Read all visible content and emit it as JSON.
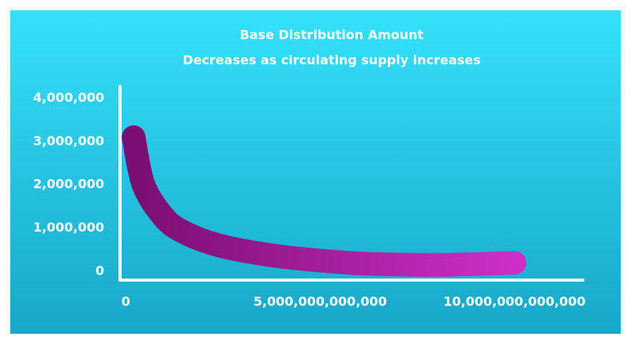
{
  "chart_data": {
    "type": "line",
    "title": "Base Distribution Amount",
    "subtitle": "Decreases as circulating supply increases",
    "x": [
      200000000000,
      350000000000,
      500000000000,
      800000000000,
      1200000000000,
      1800000000000,
      2400000000000,
      3200000000000,
      4100000000000,
      5000000000000,
      5900000000000,
      7000000000000,
      8000000000000,
      9000000000000,
      10000000000000
    ],
    "values": [
      3100000,
      2350000,
      1900000,
      1450000,
      1060000,
      780000,
      600000,
      450000,
      330000,
      250000,
      190000,
      160000,
      150000,
      170000,
      200000
    ],
    "color": [
      "#7a0e72",
      "#cc2fc6"
    ],
    "xlim": [
      -150000000000,
      11800000000000
    ],
    "xticks": [
      0,
      {
        "value": 5000000000000,
        "label": "5,000,000,000,000"
      },
      {
        "value": 10000000000000,
        "label": "10,000,000,000,000"
      }
    ],
    "ylim": [
      -200000,
      4300000
    ],
    "yticks": [
      0,
      {
        "value": 1000000,
        "label": "1,000,000"
      },
      {
        "value": 2000000,
        "label": "2,000,000"
      },
      {
        "value": 3000000,
        "label": "3,000,000"
      },
      {
        "value": 4000000,
        "label": "4,000,000"
      }
    ],
    "grid": false
  }
}
